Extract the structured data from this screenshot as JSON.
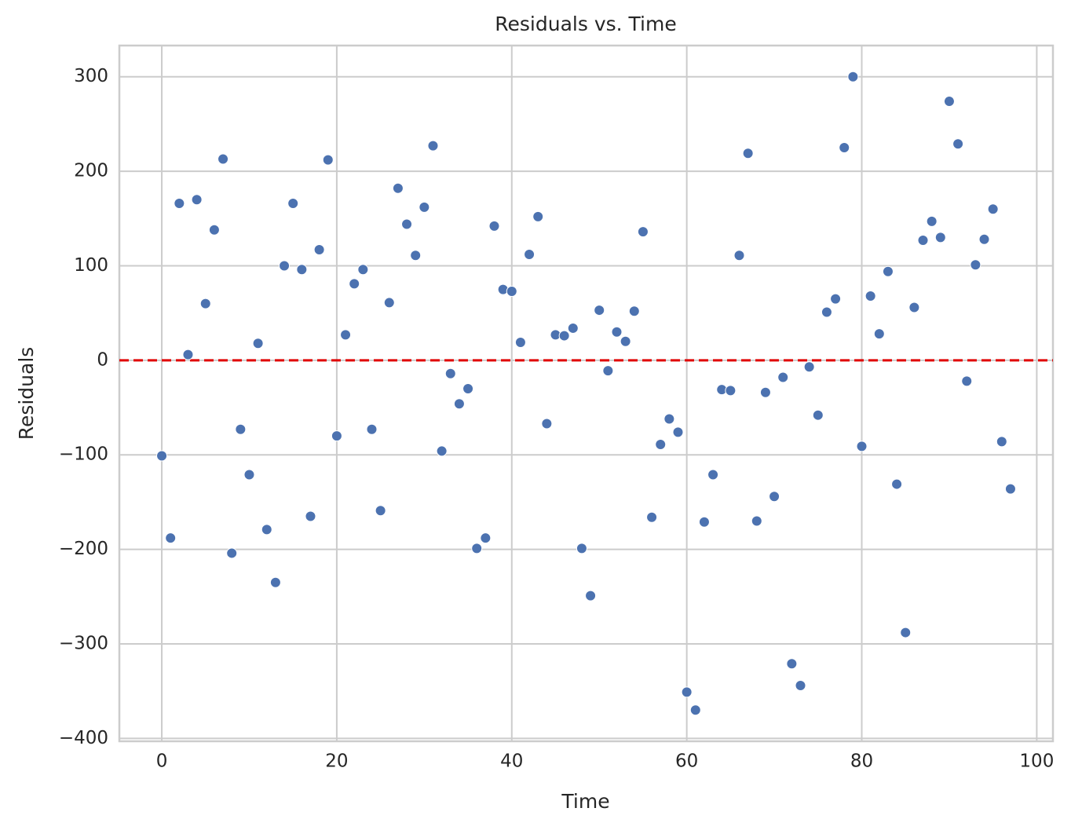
{
  "chart_data": {
    "type": "scatter",
    "title": "Residuals vs. Time",
    "x_label": "Time",
    "y_label": "Residuals",
    "x": [
      0,
      1,
      2,
      3,
      4,
      5,
      6,
      7,
      8,
      9,
      10,
      11,
      12,
      13,
      14,
      15,
      16,
      17,
      18,
      19,
      20,
      21,
      22,
      23,
      24,
      25,
      26,
      27,
      28,
      29,
      30,
      31,
      32,
      33,
      34,
      35,
      36,
      37,
      38,
      39,
      40,
      41,
      42,
      43,
      44,
      45,
      46,
      47,
      48,
      49,
      50,
      51,
      52,
      53,
      54,
      55,
      56,
      57,
      58,
      59,
      60,
      61,
      62,
      63,
      64,
      65,
      66,
      67,
      68,
      69,
      70,
      71,
      72,
      73,
      74,
      75,
      76,
      77,
      78,
      79,
      80,
      81,
      82,
      83,
      84,
      85,
      86,
      87,
      88,
      89,
      90,
      91,
      92,
      93,
      94,
      95,
      96,
      97
    ],
    "values": [
      -101,
      -188,
      166,
      6,
      170,
      60,
      138,
      213,
      -204,
      -73,
      -121,
      18,
      -179,
      -235,
      100,
      166,
      96,
      -165,
      117,
      212,
      -80,
      27,
      81,
      96,
      -73,
      -159,
      61,
      182,
      144,
      111,
      162,
      227,
      -96,
      -14,
      -46,
      -30,
      -199,
      -188,
      142,
      75,
      73,
      19,
      112,
      152,
      -67,
      27,
      26,
      34,
      -199,
      -249,
      53,
      -11,
      30,
      20,
      52,
      136,
      -166,
      -89,
      -62,
      -76,
      -351,
      -370,
      -171,
      -121,
      -31,
      -32,
      111,
      219,
      -170,
      -34,
      -144,
      -18,
      -321,
      -344,
      -7,
      -58,
      51,
      65,
      225,
      300,
      -91,
      68,
      28,
      94,
      -131,
      -288,
      56,
      127,
      147,
      130,
      274,
      229,
      -22,
      101,
      128,
      160,
      -86,
      -136
    ],
    "color": "#4c72b0",
    "xlim": [
      -4.85,
      101.85
    ],
    "ylim": [
      -403,
      333
    ],
    "xticks": [
      0,
      20,
      40,
      60,
      80,
      100
    ],
    "yticks": [
      {
        "value": -400,
        "label": "−400"
      },
      {
        "value": -300,
        "label": "−300"
      },
      {
        "value": -200,
        "label": "−200"
      },
      {
        "value": -100,
        "label": "−100"
      },
      0,
      100,
      200,
      300
    ],
    "grid": true,
    "reference_line": {
      "value": 0,
      "color": "#e00000"
    }
  }
}
